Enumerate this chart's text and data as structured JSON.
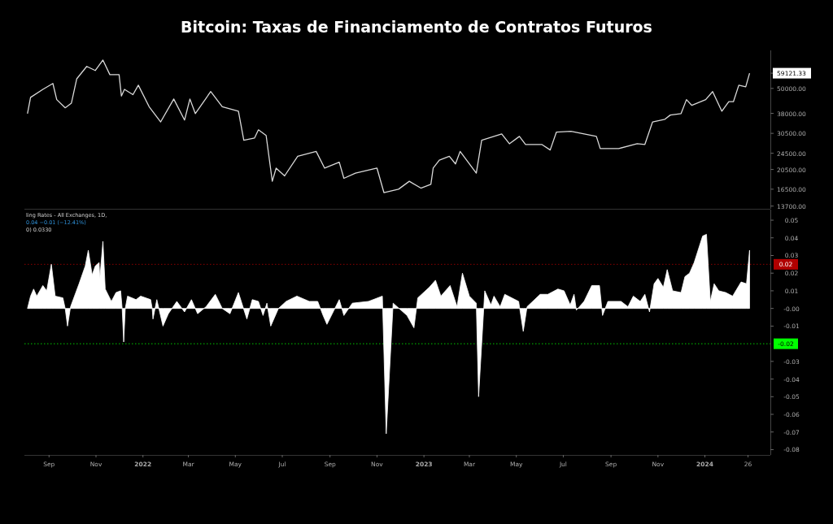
{
  "chart_data": [
    {
      "type": "line",
      "title": "Bitcoin: Taxas de Financiamento de Contratos Futuros",
      "log": "y",
      "tick_labels": "y",
      "xlim": [
        "2021-07-31",
        "2024-03-26"
      ],
      "ylim": [
        13300,
        76000
      ],
      "yticks": [
        {
          "value": 13700,
          "label": "13700.00"
        },
        {
          "value": 16500,
          "label": "16500.00"
        },
        {
          "value": 20500,
          "label": "20500.00"
        },
        {
          "value": 24500,
          "label": "24500.00"
        },
        {
          "value": 30500,
          "label": "30500.00"
        },
        {
          "value": 38000,
          "label": "38000.00"
        },
        {
          "value": 50000,
          "label": "50000.00"
        },
        {
          "value": 59121.33,
          "label": "59121.33"
        }
      ],
      "series": [
        {
          "color": "#d9d9d9",
          "x": [
            "2021-08-04",
            "2021-08-08",
            "2021-08-24",
            "2021-09-06",
            "2021-09-11",
            "2021-09-22",
            "2021-09-30",
            "2021-10-07",
            "2021-10-20",
            "2021-10-31",
            "2021-11-10",
            "2021-11-19",
            "2021-12-01",
            "2021-12-04",
            "2021-12-08",
            "2021-12-19",
            "2021-12-26",
            "2022-01-09",
            "2022-01-24",
            "2022-02-10",
            "2022-02-24",
            "2022-03-03",
            "2022-03-10",
            "2022-03-30",
            "2022-04-14",
            "2022-05-05",
            "2022-05-12",
            "2022-05-26",
            "2022-05-31",
            "2022-06-10",
            "2022-06-18",
            "2022-06-23",
            "2022-07-04",
            "2022-07-21",
            "2022-08-14",
            "2022-08-25",
            "2022-09-13",
            "2022-09-19",
            "2022-10-04",
            "2022-11-01",
            "2022-11-10",
            "2022-11-29",
            "2022-12-13",
            "2022-12-28",
            "2023-01-10",
            "2023-01-13",
            "2023-01-21",
            "2023-02-03",
            "2023-02-11",
            "2023-02-17",
            "2023-03-10",
            "2023-03-17",
            "2023-04-12",
            "2023-04-22",
            "2023-05-05",
            "2023-05-13",
            "2023-06-03",
            "2023-06-14",
            "2023-06-22",
            "2023-07-11",
            "2023-08-13",
            "2023-08-18",
            "2023-09-11",
            "2023-10-05",
            "2023-10-15",
            "2023-10-25",
            "2023-11-10",
            "2023-11-17",
            "2023-12-01",
            "2023-12-08",
            "2023-12-15",
            "2024-01-02",
            "2024-01-11",
            "2024-01-23",
            "2024-02-01",
            "2024-02-07",
            "2024-02-14",
            "2024-02-23",
            "2024-02-28"
          ],
          "values": [
            37900,
            45300,
            49500,
            52800,
            44200,
            40400,
            42500,
            55600,
            63700,
            60900,
            68300,
            58200,
            58200,
            46000,
            49500,
            46700,
            51800,
            40900,
            34600,
            44500,
            35300,
            44500,
            37900,
            48300,
            40900,
            38900,
            28300,
            29000,
            31700,
            29800,
            18000,
            20800,
            19100,
            23700,
            25000,
            20800,
            22200,
            18600,
            19700,
            20800,
            15900,
            16500,
            18000,
            16700,
            17400,
            20800,
            22700,
            23700,
            21800,
            25000,
            19700,
            28300,
            30300,
            27200,
            29500,
            27000,
            27000,
            25400,
            30900,
            31200,
            29500,
            25800,
            25800,
            27200,
            27000,
            34600,
            35600,
            37300,
            37900,
            44200,
            41500,
            44200,
            48300,
            38900,
            43200,
            43200,
            51800,
            50900,
            59121.33
          ]
        }
      ]
    },
    {
      "type": "area",
      "annotations": [
        "ling Rates - All Exchanges, 1D,",
        "0.04  −0.01 (−12.41%)",
        "0)  0.0330"
      ],
      "xlim": [
        "2021-07-31",
        "2024-03-26"
      ],
      "ylim": [
        -0.083,
        0.056
      ],
      "xticks": [
        {
          "value": "2021-09-01",
          "label": "Sep"
        },
        {
          "value": "2021-11-01",
          "label": "Nov"
        },
        {
          "value": "2022-01-01",
          "label": "2022"
        },
        {
          "value": "2022-03-01",
          "label": "Mar"
        },
        {
          "value": "2022-05-01",
          "label": "May"
        },
        {
          "value": "2022-07-01",
          "label": "Jul"
        },
        {
          "value": "2022-09-01",
          "label": "Sep"
        },
        {
          "value": "2022-11-01",
          "label": "Nov"
        },
        {
          "value": "2023-01-01",
          "label": "2023"
        },
        {
          "value": "2023-03-01",
          "label": "Mar"
        },
        {
          "value": "2023-05-01",
          "label": "May"
        },
        {
          "value": "2023-07-01",
          "label": "Jul"
        },
        {
          "value": "2023-09-01",
          "label": "Sep"
        },
        {
          "value": "2023-11-01",
          "label": "Nov"
        },
        {
          "value": "2024-01-01",
          "label": "2024"
        },
        {
          "value": "2024-02-26",
          "label": "26"
        }
      ],
      "yticks": [
        0.05,
        0.04,
        0.03,
        0.02,
        0.01,
        {
          "value": 0,
          "label": "-0.00"
        },
        -0.01,
        -0.03,
        -0.04,
        -0.05,
        -0.06,
        -0.07,
        -0.08
      ],
      "ref_lines": [
        {
          "axis": "y",
          "value": 0.025,
          "label": "0.02",
          "color": "#b00000",
          "line_style": "dotted"
        },
        {
          "axis": "y",
          "value": -0.02,
          "label": "-0.02",
          "color": "#00ff00",
          "line_style": "dotted"
        }
      ],
      "series": [
        {
          "color": "#ffffff",
          "x": [
            "2021-08-04",
            "2021-08-08",
            "2021-08-12",
            "2021-08-16",
            "2021-08-24",
            "2021-08-29",
            "2021-09-04",
            "2021-09-09",
            "2021-09-19",
            "2021-09-22",
            "2021-09-25",
            "2021-09-29",
            "2021-10-10",
            "2021-10-18",
            "2021-10-22",
            "2021-10-27",
            "2021-10-31",
            "2021-11-05",
            "2021-11-06",
            "2021-11-10",
            "2021-11-13",
            "2021-11-21",
            "2021-11-27",
            "2021-12-03",
            "2021-12-05",
            "2021-12-07",
            "2021-12-09",
            "2021-12-12",
            "2021-12-23",
            "2021-12-29",
            "2022-01-11",
            "2022-01-13",
            "2022-01-14",
            "2022-01-19",
            "2022-01-27",
            "2022-02-03",
            "2022-02-14",
            "2022-02-24",
            "2022-03-05",
            "2022-03-13",
            "2022-03-24",
            "2022-04-05",
            "2022-04-14",
            "2022-04-24",
            "2022-05-05",
            "2022-05-16",
            "2022-05-23",
            "2022-05-31",
            "2022-06-06",
            "2022-06-11",
            "2022-06-16",
            "2022-06-26",
            "2022-07-06",
            "2022-07-20",
            "2022-08-05",
            "2022-08-16",
            "2022-08-23",
            "2022-08-28",
            "2022-09-13",
            "2022-09-19",
            "2022-09-30",
            "2022-10-21",
            "2022-11-08",
            "2022-11-13",
            "2022-11-22",
            "2022-12-10",
            "2022-12-19",
            "2022-12-24",
            "2023-01-08",
            "2023-01-16",
            "2023-01-23",
            "2023-02-04",
            "2023-02-13",
            "2023-02-20",
            "2023-03-01",
            "2023-03-10",
            "2023-03-13",
            "2023-03-21",
            "2023-03-29",
            "2023-04-02",
            "2023-04-10",
            "2023-04-16",
            "2023-05-04",
            "2023-05-10",
            "2023-05-15",
            "2023-06-01",
            "2023-06-11",
            "2023-06-24",
            "2023-07-02",
            "2023-07-10",
            "2023-07-15",
            "2023-07-18",
            "2023-07-28",
            "2023-08-07",
            "2023-08-17",
            "2023-08-21",
            "2023-08-28",
            "2023-09-14",
            "2023-09-23",
            "2023-09-30",
            "2023-10-09",
            "2023-10-15",
            "2023-10-21",
            "2023-10-27",
            "2023-11-01",
            "2023-11-08",
            "2023-11-13",
            "2023-11-20",
            "2023-12-01",
            "2023-12-06",
            "2023-12-12",
            "2023-12-18",
            "2023-12-29",
            "2024-01-03",
            "2024-01-08",
            "2024-01-13",
            "2024-01-19",
            "2024-01-28",
            "2024-02-06",
            "2024-02-17",
            "2024-02-24",
            "2024-02-28"
          ],
          "values": [
            0,
            0.007,
            0.011,
            0.007,
            0.013,
            0.01,
            0.025,
            0.007,
            0.006,
            0,
            -0.01,
            0.001,
            0.014,
            0.024,
            0.033,
            0.019,
            0.024,
            0.026,
            0.017,
            0.038,
            0.011,
            0.004,
            0.009,
            0.01,
            0,
            -0.019,
            0,
            0.007,
            0.005,
            0.007,
            0.005,
            0,
            -0.006,
            0.005,
            -0.01,
            -0.003,
            0.004,
            -0.002,
            0.005,
            -0.003,
            0.001,
            0.008,
            0,
            -0.003,
            0.009,
            -0.006,
            0.005,
            0.004,
            -0.004,
            0.003,
            -0.01,
            0,
            0.004,
            0.007,
            0.004,
            0.004,
            -0.004,
            -0.009,
            0.005,
            -0.004,
            0.003,
            0.004,
            0.007,
            -0.071,
            0.003,
            -0.004,
            -0.011,
            0.006,
            0.012,
            0.016,
            0.007,
            0.013,
            0.001,
            0.02,
            0.007,
            0.003,
            -0.05,
            0.01,
            0.002,
            0.007,
            0.001,
            0.008,
            0.004,
            -0.013,
            0.001,
            0.008,
            0.008,
            0.011,
            0.01,
            0.002,
            0.008,
            -0.001,
            0.004,
            0.013,
            0.013,
            -0.004,
            0.004,
            0.004,
            0.001,
            0.007,
            0.004,
            0.008,
            -0.002,
            0.014,
            0.017,
            0.012,
            0.022,
            0.01,
            0.009,
            0.018,
            0.02,
            0.026,
            0.041,
            0.042,
            0.004,
            0.014,
            0.01,
            0.009,
            0.007,
            0.015,
            0.014,
            0.033
          ]
        }
      ]
    }
  ]
}
